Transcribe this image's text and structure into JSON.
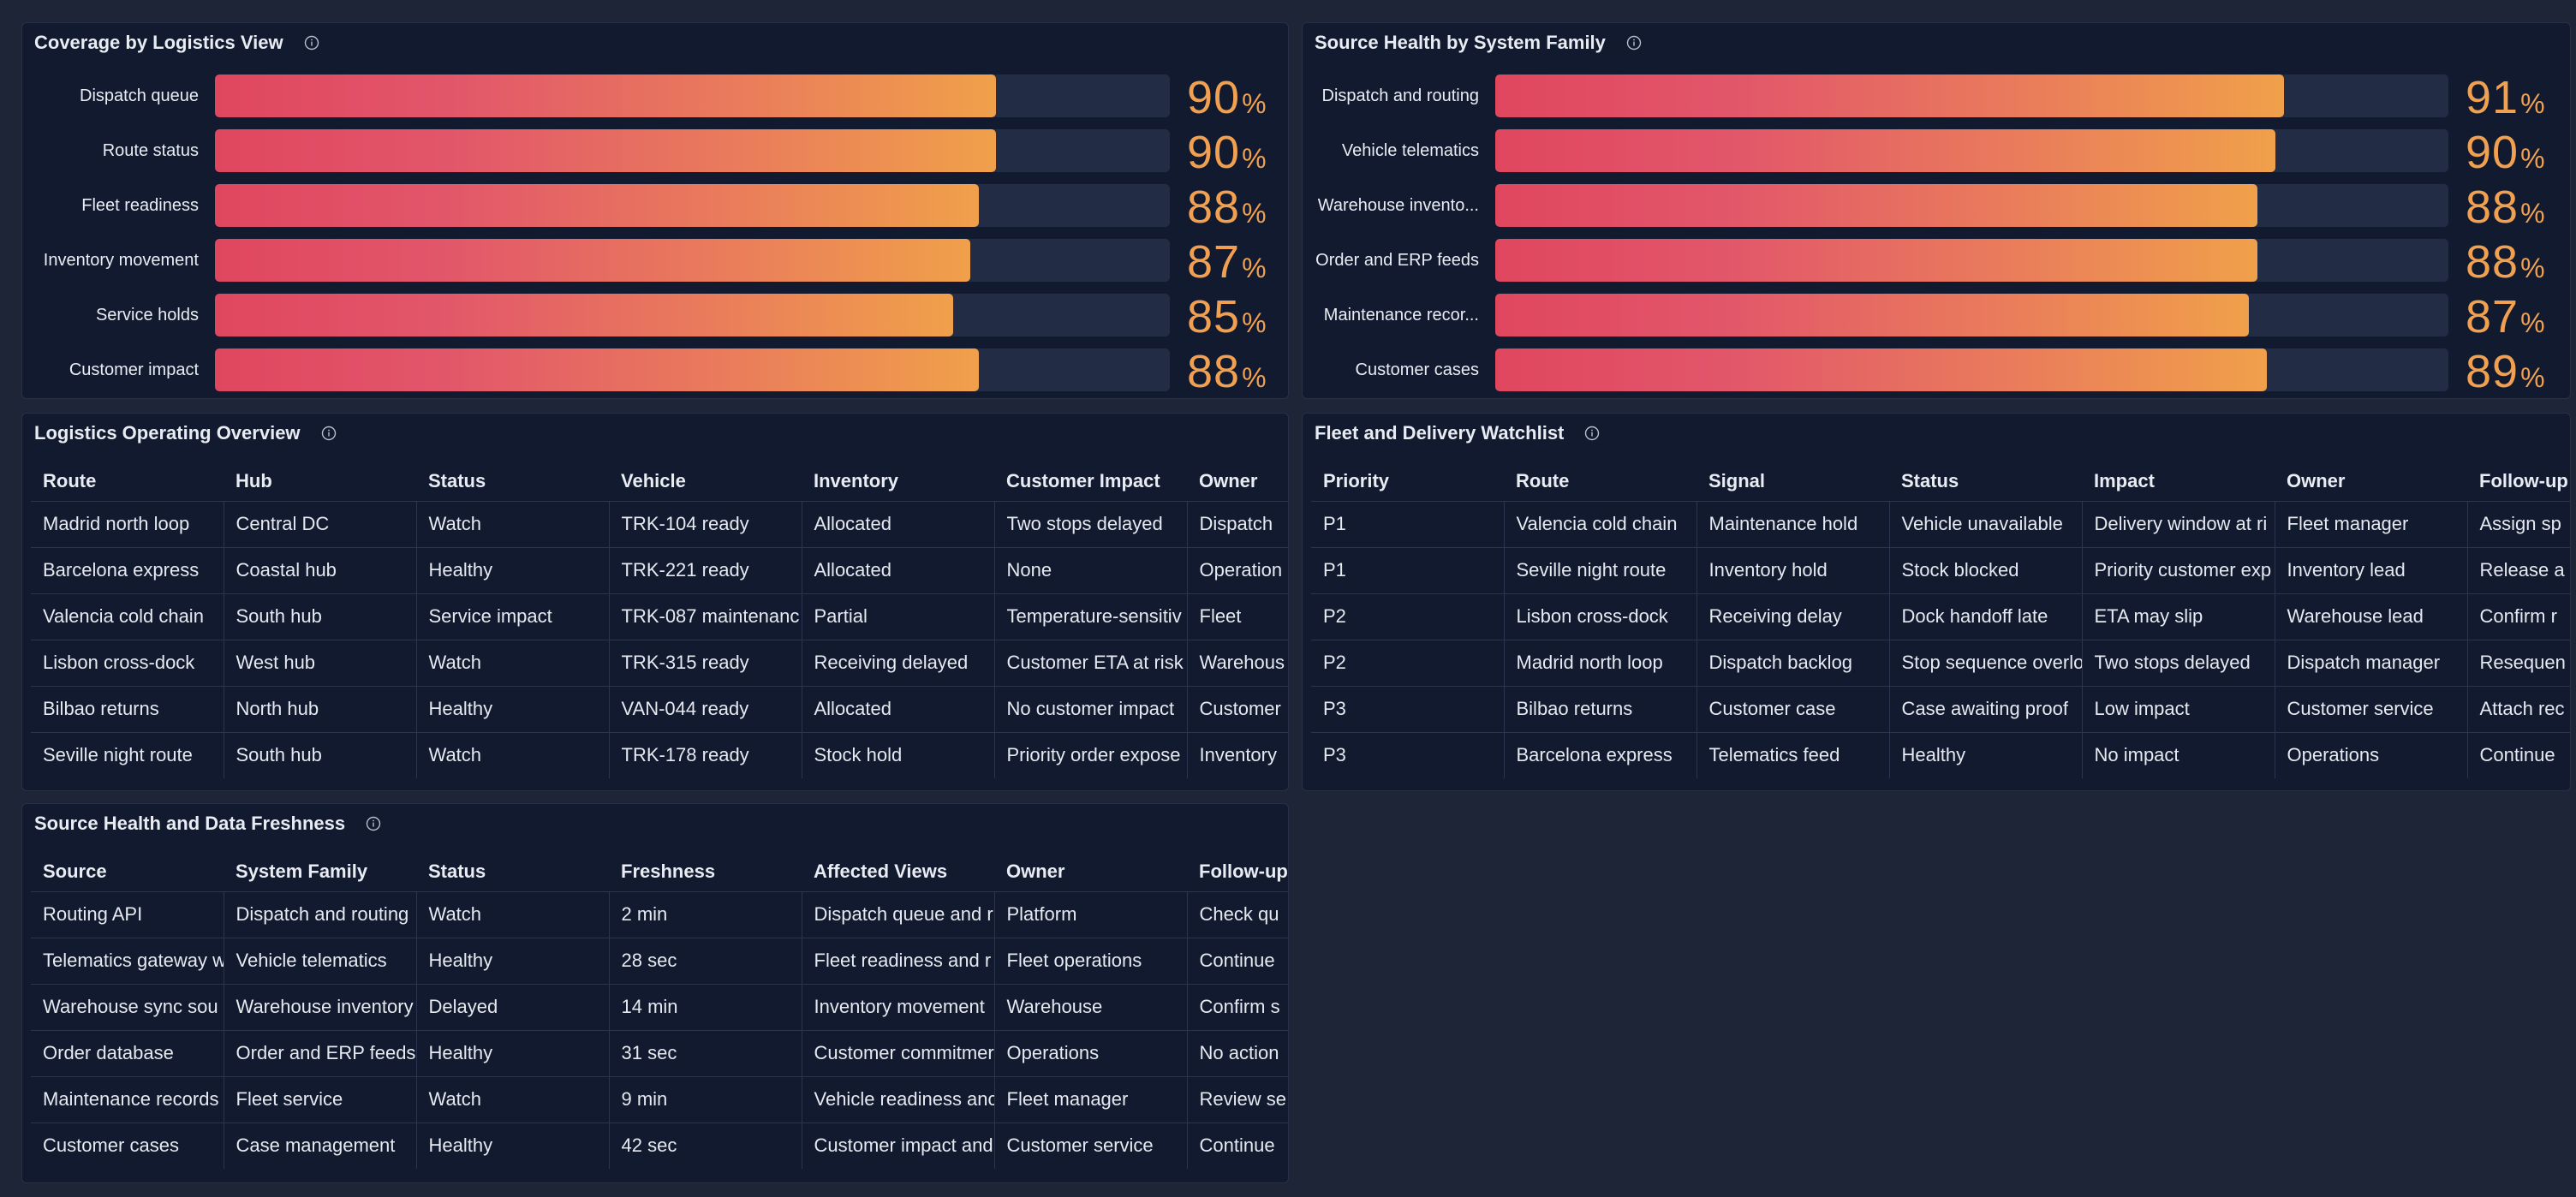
{
  "coverage": {
    "title": "Coverage by Logistics View",
    "rows": [
      {
        "label": "Dispatch queue",
        "value": 90
      },
      {
        "label": "Route status",
        "value": 90
      },
      {
        "label": "Fleet readiness",
        "value": 88
      },
      {
        "label": "Inventory movement",
        "value": 87
      },
      {
        "label": "Service holds",
        "value": 85
      },
      {
        "label": "Customer impact",
        "value": 88
      }
    ]
  },
  "source_health": {
    "title": "Source Health by System Family",
    "rows": [
      {
        "label": "Dispatch and routing",
        "value": 91
      },
      {
        "label": "Vehicle telematics",
        "value": 90
      },
      {
        "label": "Warehouse invento...",
        "value": 88
      },
      {
        "label": "Order and ERP feeds",
        "value": 88
      },
      {
        "label": "Maintenance recor...",
        "value": 87
      },
      {
        "label": "Customer cases",
        "value": 89
      }
    ]
  },
  "percent_sign": "%",
  "overview": {
    "title": "Logistics Operating Overview",
    "columns": [
      "Route",
      "Hub",
      "Status",
      "Vehicle",
      "Inventory",
      "Customer Impact",
      "Owner"
    ],
    "rows": [
      [
        "Madrid north loop",
        "Central DC",
        "Watch",
        "TRK-104 ready",
        "Allocated",
        "Two stops delayed",
        "Dispatch"
      ],
      [
        "Barcelona express",
        "Coastal hub",
        "Healthy",
        "TRK-221 ready",
        "Allocated",
        "None",
        "Operation"
      ],
      [
        "Valencia cold chain",
        "South hub",
        "Service impact",
        "TRK-087 maintenanc",
        "Partial",
        "Temperature-sensitiv",
        "Fleet"
      ],
      [
        "Lisbon cross-dock",
        "West hub",
        "Watch",
        "TRK-315 ready",
        "Receiving delayed",
        "Customer ETA at risk",
        "Warehous"
      ],
      [
        "Bilbao returns",
        "North hub",
        "Healthy",
        "VAN-044 ready",
        "Allocated",
        "No customer impact",
        "Customer"
      ],
      [
        "Seville night route",
        "South hub",
        "Watch",
        "TRK-178 ready",
        "Stock hold",
        "Priority order expose",
        "Inventory"
      ]
    ]
  },
  "watchlist": {
    "title": "Fleet and Delivery Watchlist",
    "columns": [
      "Priority",
      "Route",
      "Signal",
      "Status",
      "Impact",
      "Owner",
      "Follow-up"
    ],
    "rows": [
      [
        "P1",
        "Valencia cold chain",
        "Maintenance hold",
        "Vehicle unavailable",
        "Delivery window at ri",
        "Fleet manager",
        "Assign sp"
      ],
      [
        "P1",
        "Seville night route",
        "Inventory hold",
        "Stock blocked",
        "Priority customer exp",
        "Inventory lead",
        "Release a"
      ],
      [
        "P2",
        "Lisbon cross-dock",
        "Receiving delay",
        "Dock handoff late",
        "ETA may slip",
        "Warehouse lead",
        "Confirm r"
      ],
      [
        "P2",
        "Madrid north loop",
        "Dispatch backlog",
        "Stop sequence overlo",
        "Two stops delayed",
        "Dispatch manager",
        "Resequen"
      ],
      [
        "P3",
        "Bilbao returns",
        "Customer case",
        "Case awaiting proof",
        "Low impact",
        "Customer service",
        "Attach rec"
      ],
      [
        "P3",
        "Barcelona express",
        "Telematics feed",
        "Healthy",
        "No impact",
        "Operations",
        "Continue"
      ]
    ]
  },
  "freshness": {
    "title": "Source Health and Data Freshness",
    "columns": [
      "Source",
      "System Family",
      "Status",
      "Freshness",
      "Affected Views",
      "Owner",
      "Follow-up"
    ],
    "rows": [
      [
        "Routing API",
        "Dispatch and routing",
        "Watch",
        "2 min",
        "Dispatch queue and r",
        "Platform",
        "Check qu"
      ],
      [
        "Telematics gateway w",
        "Vehicle telematics",
        "Healthy",
        "28 sec",
        "Fleet readiness and r",
        "Fleet operations",
        "Continue"
      ],
      [
        "Warehouse sync sou",
        "Warehouse inventory",
        "Delayed",
        "14 min",
        "Inventory movement",
        "Warehouse",
        "Confirm s"
      ],
      [
        "Order database",
        "Order and ERP feeds",
        "Healthy",
        "31 sec",
        "Customer commitmer",
        "Operations",
        "No action"
      ],
      [
        "Maintenance records",
        "Fleet service",
        "Watch",
        "9 min",
        "Vehicle readiness anc",
        "Fleet manager",
        "Review se"
      ],
      [
        "Customer cases",
        "Case management",
        "Healthy",
        "42 sec",
        "Customer impact and",
        "Customer service",
        "Continue"
      ]
    ]
  },
  "icons": {
    "panel_info": "info-icon"
  },
  "colors": {
    "accent": "#f0a050",
    "bar_start": "#e0475f",
    "bar_end": "#f0a04a",
    "panel_bg": "#111a2e",
    "page_bg": "#1e2537"
  }
}
